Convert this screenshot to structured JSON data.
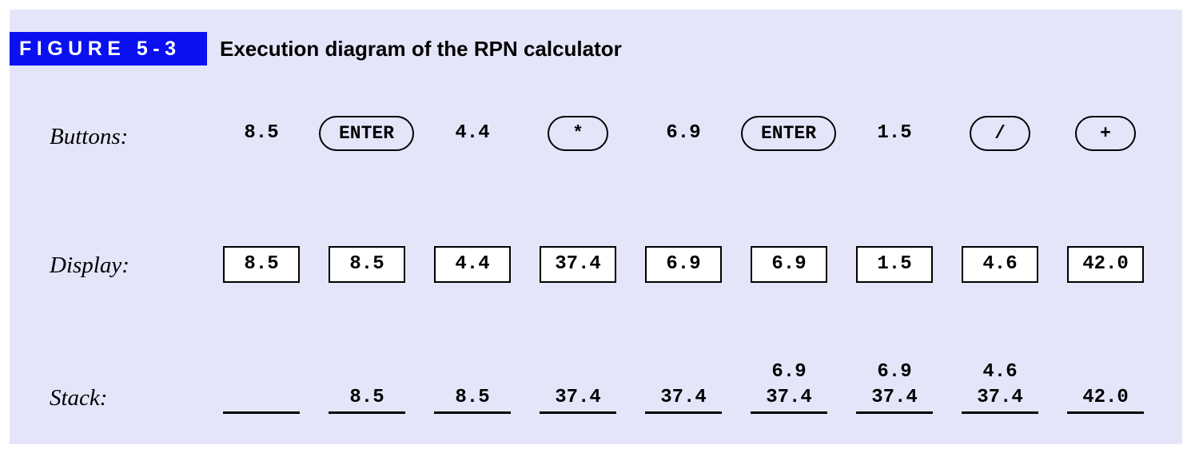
{
  "figure": {
    "tag": "FIGURE 5-3",
    "title": "Execution diagram of the RPN calculator",
    "background": "#e5e5fa",
    "tag_color": "#0a10f0"
  },
  "rows": {
    "buttons_label": "Buttons:",
    "display_label": "Display:",
    "stack_label": "Stack:"
  },
  "steps": [
    {
      "button": "8.5",
      "button_is_key": false,
      "display": "8.5",
      "stack_upper": "",
      "stack_lower": ""
    },
    {
      "button": "ENTER",
      "button_is_key": true,
      "display": "8.5",
      "stack_upper": "",
      "stack_lower": "8.5"
    },
    {
      "button": "4.4",
      "button_is_key": false,
      "display": "4.4",
      "stack_upper": "",
      "stack_lower": "8.5"
    },
    {
      "button": "*",
      "button_is_key": true,
      "display": "37.4",
      "stack_upper": "",
      "stack_lower": "37.4"
    },
    {
      "button": "6.9",
      "button_is_key": false,
      "display": "6.9",
      "stack_upper": "",
      "stack_lower": "37.4"
    },
    {
      "button": "ENTER",
      "button_is_key": true,
      "display": "6.9",
      "stack_upper": "6.9",
      "stack_lower": "37.4"
    },
    {
      "button": "1.5",
      "button_is_key": false,
      "display": "1.5",
      "stack_upper": "6.9",
      "stack_lower": "37.4"
    },
    {
      "button": "/",
      "button_is_key": true,
      "display": "4.6",
      "stack_upper": "4.6",
      "stack_lower": "37.4"
    },
    {
      "button": "+",
      "button_is_key": true,
      "display": "42.0",
      "stack_upper": "",
      "stack_lower": "42.0"
    }
  ]
}
